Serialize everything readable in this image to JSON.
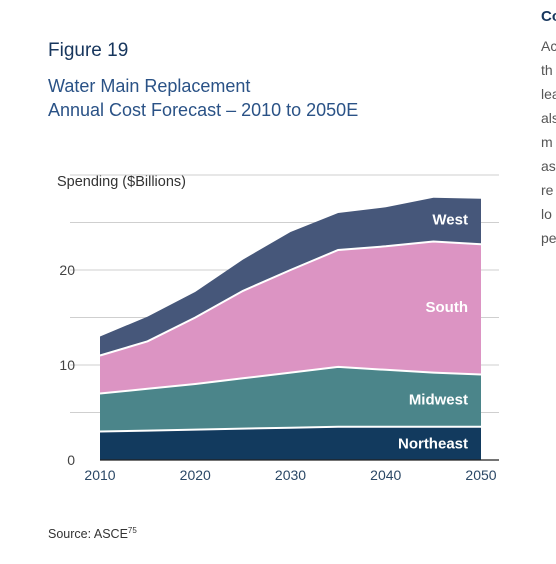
{
  "figure": {
    "label": "Figure 19",
    "title_line1": "Water Main Replacement",
    "title_line2": "Annual Cost Forecast – 2010 to 2050E",
    "source_text": "Source: ASCE",
    "source_ref": "75"
  },
  "sidebar": {
    "heading": "Co",
    "lines": [
      "Ac",
      "th",
      "lea",
      "als",
      "m",
      "as",
      "re",
      "lo",
      "pe"
    ]
  },
  "chart_data": {
    "type": "area",
    "stacked": true,
    "x": [
      2010,
      2015,
      2020,
      2025,
      2030,
      2035,
      2040,
      2045,
      2050
    ],
    "series": [
      {
        "name": "Northeast",
        "values": [
          3.0,
          3.1,
          3.2,
          3.3,
          3.4,
          3.5,
          3.5,
          3.5,
          3.5
        ],
        "color": "#123a5e"
      },
      {
        "name": "Midwest",
        "values": [
          4.0,
          4.4,
          4.8,
          5.3,
          5.8,
          6.3,
          6.0,
          5.7,
          5.5
        ],
        "color": "#4b858a"
      },
      {
        "name": "South",
        "values": [
          4.0,
          5.0,
          7.0,
          9.2,
          10.8,
          12.3,
          13.0,
          13.8,
          13.7
        ],
        "color": "#dc94c3"
      },
      {
        "name": "West",
        "values": [
          2.0,
          2.6,
          2.7,
          3.3,
          4.0,
          3.9,
          4.1,
          4.6,
          4.8
        ],
        "color": "#46577a"
      }
    ],
    "ylabel": "Spending ($Billions)",
    "xlabel": "",
    "xticks": [
      "2010",
      "2020",
      "2030",
      "2040",
      "2050"
    ],
    "yticks": [
      "0",
      "10",
      "20"
    ],
    "xlim": [
      2010,
      2050
    ],
    "ylim": [
      0,
      30
    ],
    "grid": "horizontal"
  }
}
